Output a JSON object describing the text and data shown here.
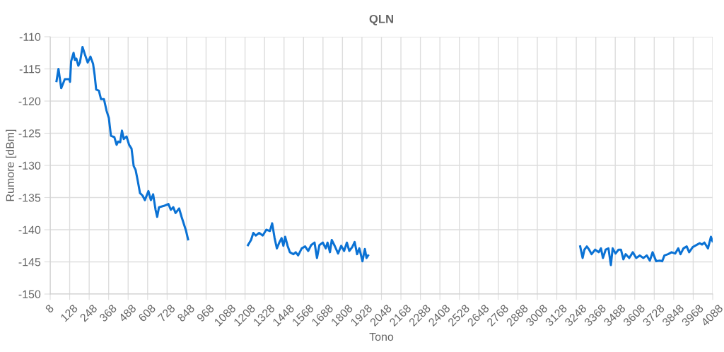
{
  "chart_data": {
    "type": "line",
    "title": "QLN",
    "xlabel": "Tono",
    "ylabel": "Rumore [dBm]",
    "x": [
      47,
      59,
      76,
      98,
      126,
      130,
      137,
      152,
      160,
      169,
      181,
      191,
      207,
      221,
      239,
      256,
      272,
      282,
      291,
      308,
      321,
      339,
      355,
      369,
      382,
      403,
      417,
      426,
      439,
      450,
      461,
      478,
      494,
      509,
      522,
      534,
      548,
      561,
      577,
      591,
      613,
      628,
      642,
      657,
      667,
      678,
      708,
      736,
      751,
      766,
      780,
      802,
      817,
      831,
      845,
      857,
      1000,
      1226,
      1245,
      1259,
      1274,
      1295,
      1317,
      1339,
      1361,
      1375,
      1390,
      1404,
      1419,
      1433,
      1444,
      1455,
      1470,
      1484,
      1506,
      1520,
      1535,
      1557,
      1578,
      1597,
      1615,
      1636,
      1651,
      1666,
      1687,
      1705,
      1716,
      1731,
      1742,
      1760,
      1781,
      1800,
      1818,
      1835,
      1850,
      1868,
      1883,
      1898,
      1912,
      1931,
      1946,
      1956,
      1966,
      3000,
      3272,
      3287,
      3298,
      3313,
      3327,
      3342,
      3364,
      3386,
      3400,
      3412,
      3429,
      3446,
      3461,
      3472,
      3490,
      3508,
      3523,
      3538,
      3552,
      3574,
      3596,
      3617,
      3639,
      3661,
      3682,
      3701,
      3718,
      3740,
      3762,
      3777,
      3791,
      3813,
      3835,
      3857,
      3876,
      3890,
      3908,
      3928,
      3943,
      3965,
      3986,
      4008,
      4022,
      4037,
      4059,
      4077,
      4087
    ],
    "series": [
      {
        "color": "#0b72d4",
        "values": [
          -116.9,
          -115,
          -118,
          -116.6,
          -116.6,
          -117,
          -113.8,
          -112.5,
          -113.6,
          -113.4,
          -114.5,
          -114,
          -111.6,
          -112.7,
          -114,
          -113.1,
          -114.2,
          -116,
          -118.2,
          -118.4,
          -119.7,
          -119.7,
          -121.5,
          -122.6,
          -125.4,
          -125.6,
          -126.8,
          -126.3,
          -126.4,
          -124.6,
          -125.9,
          -125.5,
          -126.8,
          -127.4,
          -130.1,
          -130.7,
          -132.5,
          -134.3,
          -134.7,
          -135.4,
          -134,
          -135.4,
          -134.5,
          -136.9,
          -138,
          -136.5,
          -136.3,
          -136,
          -136.9,
          -136.5,
          -137.4,
          -136.7,
          -138,
          -139.1,
          -140.2,
          -141.5,
          null,
          -142.4,
          -141.6,
          -140.5,
          -140.9,
          -140.5,
          -140.9,
          -140,
          -140.2,
          -139,
          -141.3,
          -142.9,
          -142,
          -141.3,
          -142.5,
          -141.1,
          -142.5,
          -143.5,
          -143.8,
          -143.5,
          -144,
          -142.9,
          -142.6,
          -143.3,
          -142.4,
          -142,
          -144.4,
          -142.4,
          -142,
          -142.9,
          -142,
          -143.5,
          -141.6,
          -142.5,
          -143.7,
          -142.5,
          -143.3,
          -142,
          -143.3,
          -142.7,
          -141.9,
          -143.8,
          -142.9,
          -144.9,
          -143,
          -144.4,
          -144,
          null,
          -142.6,
          -144.4,
          -143.1,
          -142.6,
          -143.1,
          -143.8,
          -143.1,
          -143.5,
          -142.9,
          -144.4,
          -143.1,
          -142.9,
          -145.5,
          -142.9,
          -143.7,
          -143.1,
          -143.1,
          -144.6,
          -143.8,
          -144.4,
          -143.5,
          -144.4,
          -144,
          -144.4,
          -144,
          -144.8,
          -143.5,
          -144.9,
          -144.8,
          -144.9,
          -144,
          -143.8,
          -143.5,
          -143.7,
          -142.9,
          -143.8,
          -142.9,
          -142.6,
          -143.5,
          -142.7,
          -142.4,
          -142.1,
          -142.3,
          -142,
          -142.9,
          -141.1,
          -141.8
        ]
      }
    ],
    "xlim": [
      8,
      4088
    ],
    "xticks": [
      8,
      128,
      248,
      368,
      488,
      608,
      728,
      848,
      968,
      1088,
      1208,
      1328,
      1448,
      1568,
      1688,
      1808,
      1928,
      2048,
      2168,
      2288,
      2408,
      2528,
      2648,
      2768,
      2888,
      3008,
      3128,
      3248,
      3368,
      3488,
      3608,
      3728,
      3848,
      3968,
      4088
    ],
    "ylim": [
      -150,
      -110
    ],
    "yticks": [
      -150,
      -145,
      -140,
      -135,
      -130,
      -125,
      -120,
      -115,
      -110
    ],
    "grid": true,
    "marker": "none",
    "line_style": "solid"
  }
}
